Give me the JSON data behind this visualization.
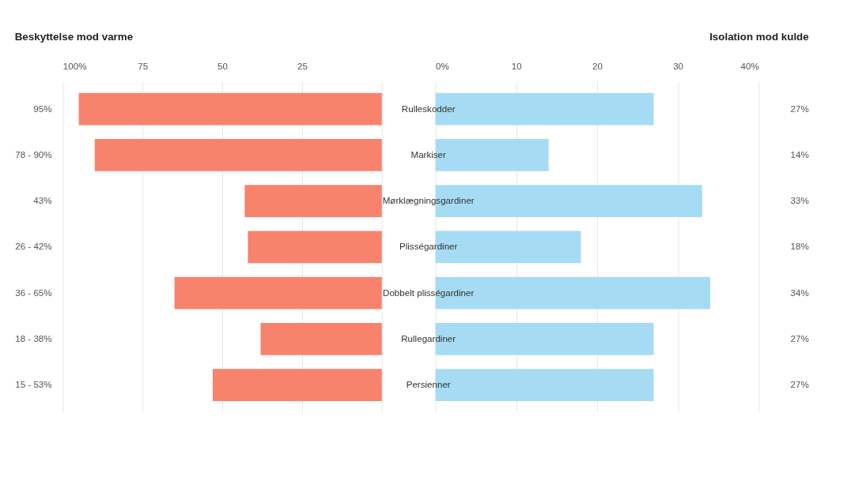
{
  "chart_data": [
    {
      "type": "bar",
      "orientation": "horizontal",
      "title": "Beskyttelse mod varme",
      "categories": [
        "95%",
        "78 - 90%",
        "43%",
        "26 - 42%",
        "36 - 65%",
        "18 - 38%",
        "15 - 53%"
      ],
      "values": [
        95,
        90,
        43,
        42,
        65,
        38,
        53
      ],
      "color": "#f8836d",
      "xlim": [
        100,
        0
      ],
      "xticks": [
        {
          "value": 100,
          "label": "100%"
        },
        75,
        50,
        25,
        {
          "value": 0,
          "label": null
        }
      ],
      "grid": "x"
    },
    {
      "type": "bar",
      "orientation": "horizontal",
      "title": "Isolation mod kulde",
      "categories": [
        "Rulleskodder",
        "Markiser",
        "Mørklægningsgardiner",
        "Plisségardiner",
        "Dobbelt plisségardiner",
        "Rullegardiner",
        "Persienner"
      ],
      "values": [
        27,
        14,
        33,
        18,
        34,
        27,
        27
      ],
      "value_labels": [
        "27%",
        "14%",
        "33%",
        "18%",
        "34%",
        "27%",
        "27%"
      ],
      "color": "#a6dcf3",
      "xlim": [
        0,
        40
      ],
      "xticks": [
        {
          "value": 0,
          "label": "0%"
        },
        10,
        20,
        30,
        {
          "value": 40,
          "label": "40%"
        }
      ],
      "grid": "x"
    }
  ]
}
